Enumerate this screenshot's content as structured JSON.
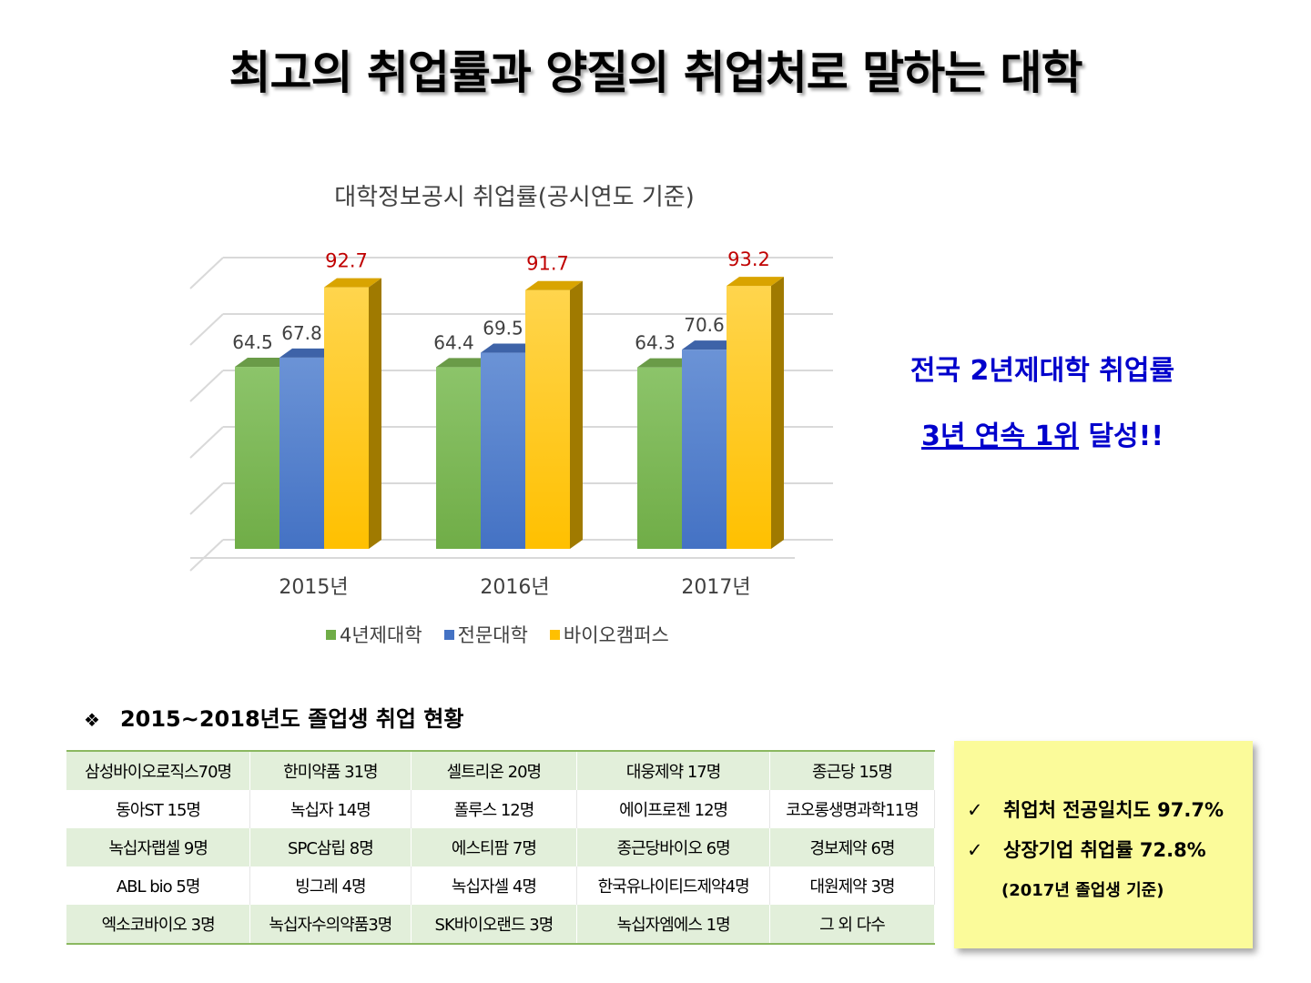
{
  "main_title": "최고의 취업률과 양질의 취업처로 말하는 대학",
  "chart_data": {
    "type": "bar",
    "title": "대학정보공시 취업률(공시연도 기준)",
    "categories": [
      "2015년",
      "2016년",
      "2017년"
    ],
    "series": [
      {
        "name": "4년제대학",
        "values": [
          64.5,
          64.4,
          64.3
        ],
        "color": "#70ad47"
      },
      {
        "name": "전문대학",
        "values": [
          67.8,
          69.5,
          70.6
        ],
        "color": "#4472c4"
      },
      {
        "name": "바이오캠퍼스",
        "values": [
          92.7,
          91.7,
          93.2
        ],
        "color": "#ffc000"
      }
    ],
    "ylim": [
      0,
      100
    ],
    "grid": true,
    "legend_position": "bottom",
    "highlight_label_color": "#c00000"
  },
  "achievement": {
    "line1": "전국 2년제대학 취업률",
    "line2_underlined": "3년 연속 1위",
    "line2_rest": " 달성!!",
    "color": "#0000cc"
  },
  "section": {
    "bullet": "❖",
    "title": "2015~2018년도 졸업생 취업 현황"
  },
  "employment_table": [
    [
      "삼성바이오로직스70명",
      "한미약품 31명",
      "셀트리온 20명",
      "대웅제약 17명",
      "종근당 15명"
    ],
    [
      "동아ST 15명",
      "녹십자 14명",
      "폴루스 12명",
      "에이프로젠 12명",
      "코오롱생명과학11명"
    ],
    [
      "녹십자랩셀 9명",
      "SPC삼립 8명",
      "에스티팜 7명",
      "종근당바이오 6명",
      "경보제약 6명"
    ],
    [
      "ABL bio 5명",
      "빙그레 4명",
      "녹십자셀 4명",
      "한국유나이티드제약4명",
      "대원제약 3명"
    ],
    [
      "엑소코바이오 3명",
      "녹십자수의약품3명",
      "SK바이오랜드 3명",
      "녹십자엠에스 1명",
      "그 외 다수"
    ]
  ],
  "note": {
    "check_symbol": "✓",
    "item1": "취업처 전공일치도 97.7%",
    "item2": "상장기업 취업률 72.8%",
    "footnote": "(2017년 졸업생 기준)",
    "background": "#fbfb9a"
  }
}
